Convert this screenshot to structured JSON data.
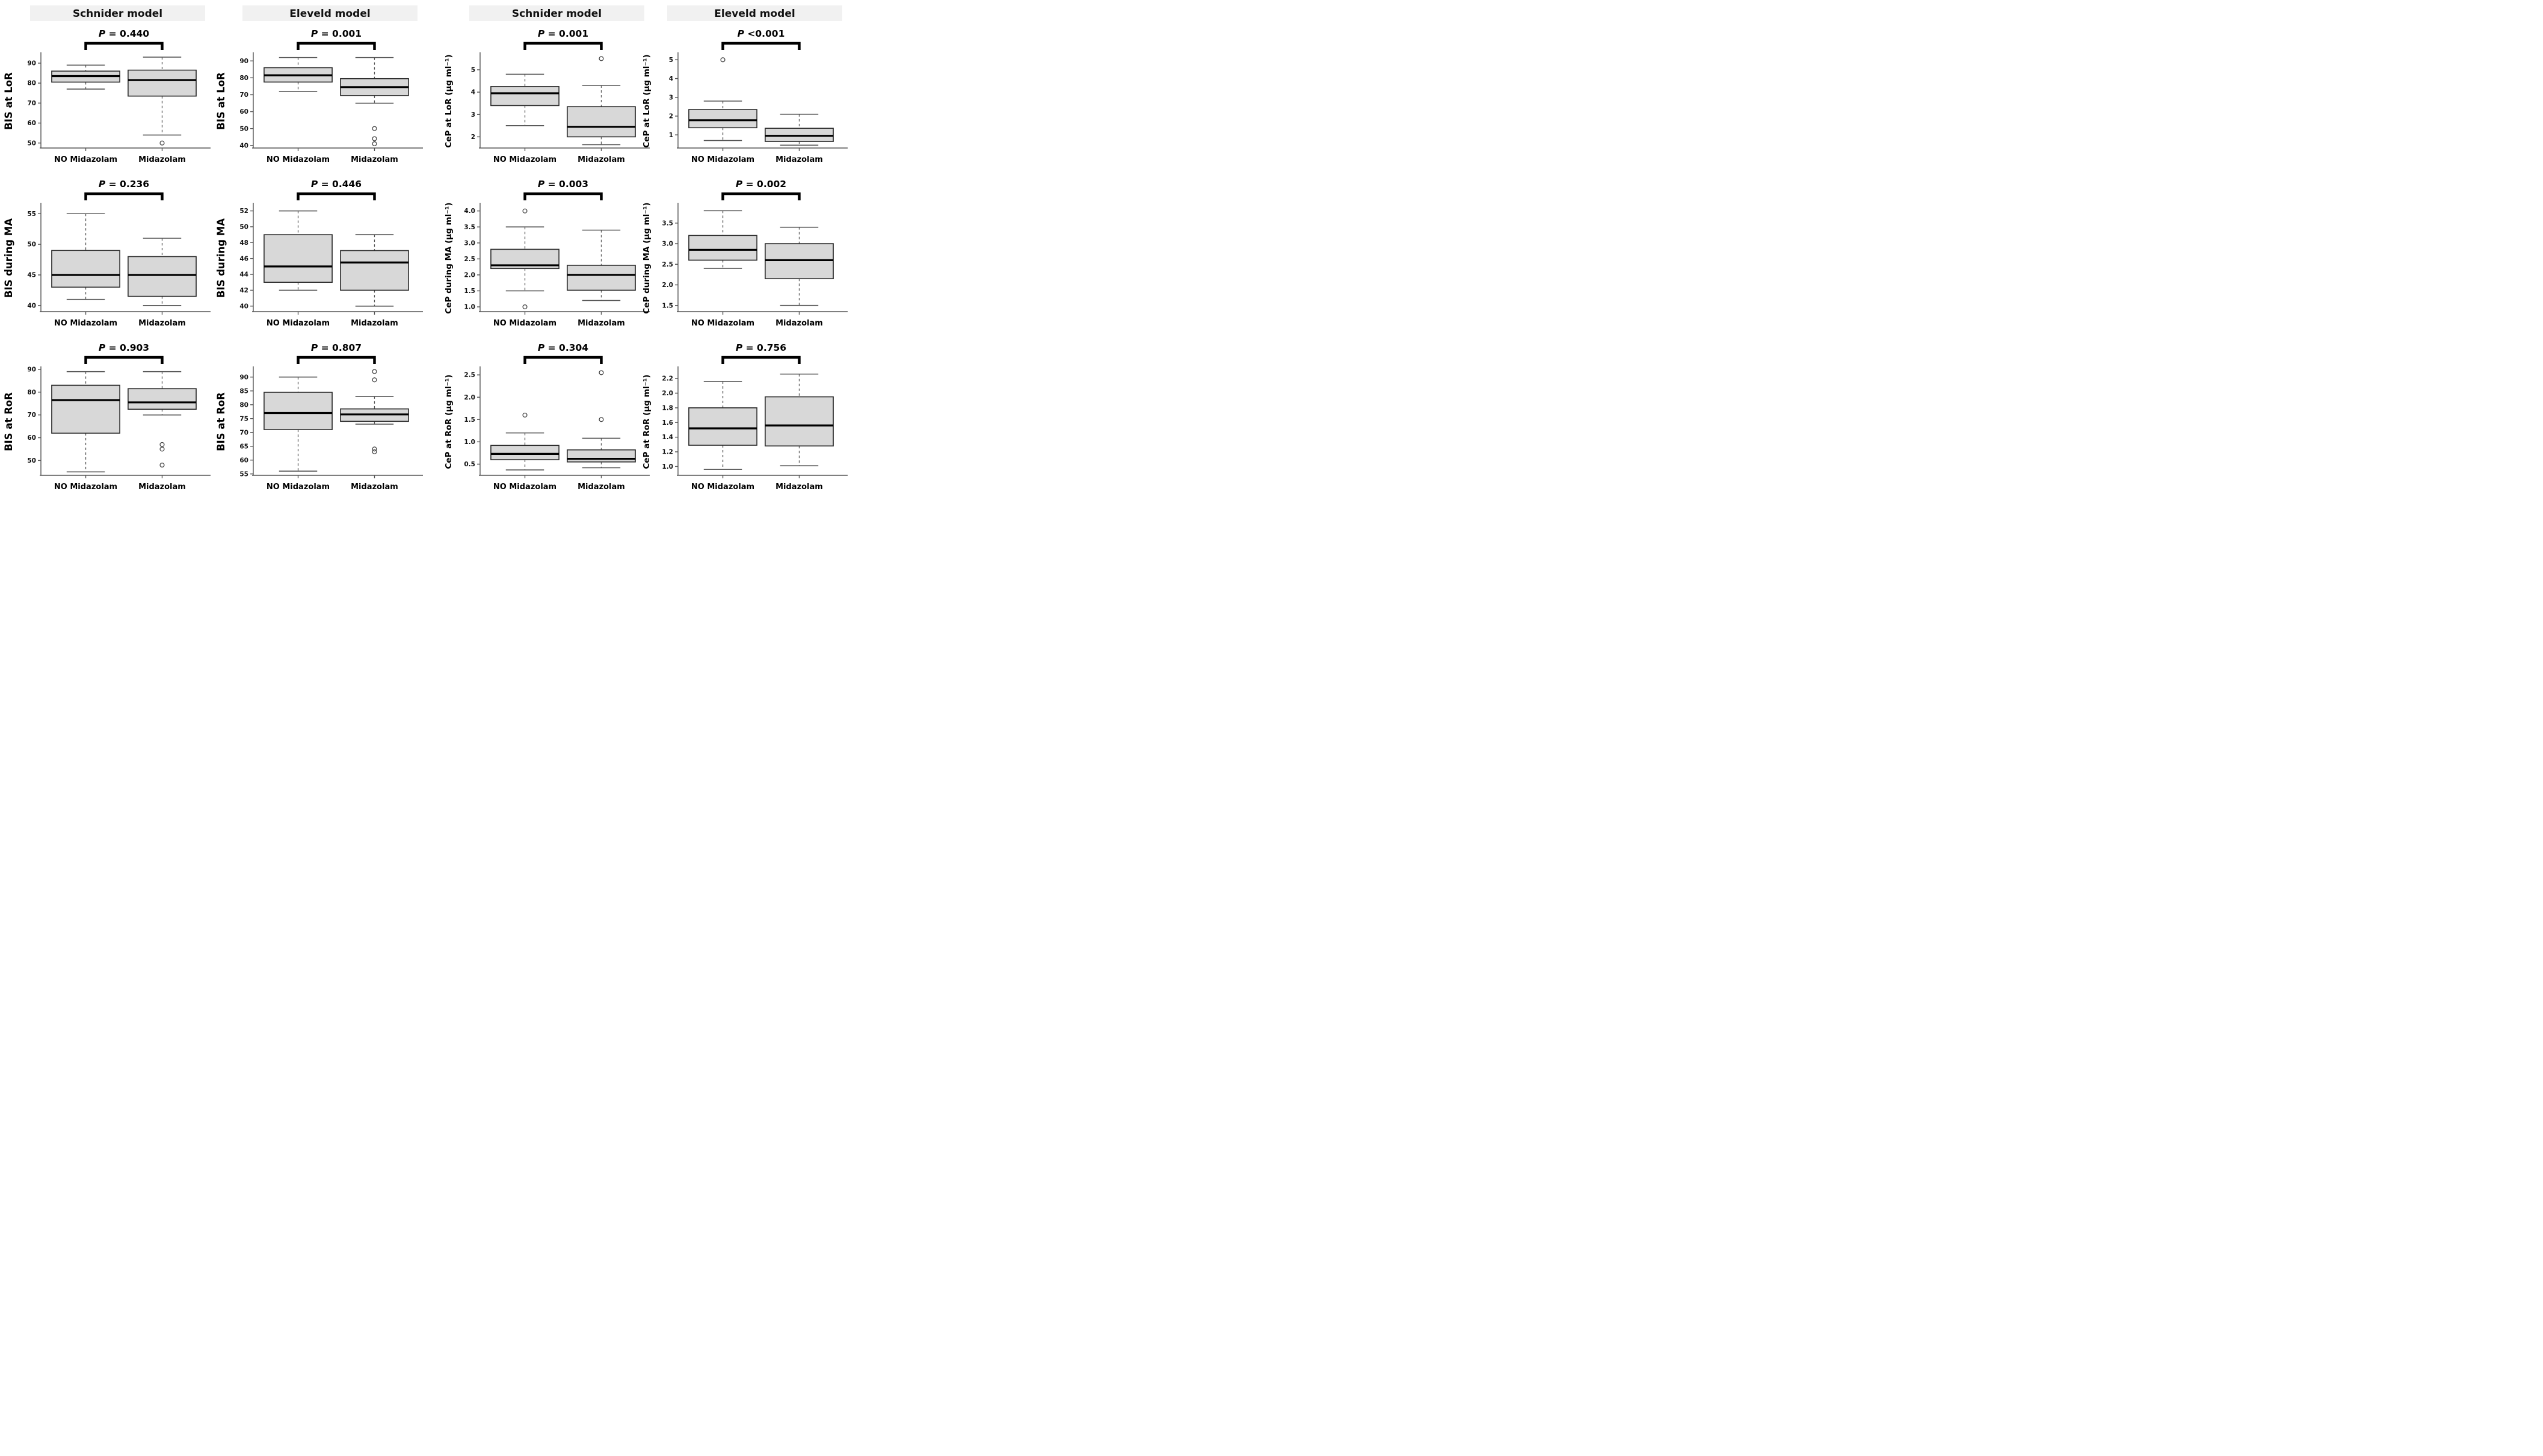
{
  "figure": {
    "column_headers": [
      "Schnider model",
      "Eleveld model",
      "Schnider model",
      "Eleveld model"
    ],
    "group_labels": [
      "NO Midazolam",
      "Midazolam"
    ],
    "header_band_color": "#f1f1f1",
    "box_fill_color": "#d8d8d8",
    "box_stroke_color": "#2b2b2b",
    "median_color": "#000000",
    "whisker_color": "#555555",
    "bracket_color": "#000000"
  },
  "chart_data": [
    {
      "id": "schnider-bis-lor",
      "type": "boxplot",
      "row": 1,
      "col": 1,
      "column_header": "Schnider model",
      "p_label": "P = 0.440",
      "ylabel": "BIS at LoR",
      "ylim": [
        47.5,
        94.5
      ],
      "yticks": [
        50,
        60,
        70,
        80,
        90
      ],
      "ytick_labels": [
        "50",
        "60",
        "70",
        "80",
        "90"
      ],
      "categories": [
        "NO Midazolam",
        "Midazolam"
      ],
      "boxes": [
        {
          "group": "NO Midazolam",
          "whisker_low": 77,
          "q1": 80.5,
          "median": 83.5,
          "q3": 86,
          "whisker_high": 89,
          "outliers": []
        },
        {
          "group": "Midazolam",
          "whisker_low": 54,
          "q1": 73.5,
          "median": 81.5,
          "q3": 86.5,
          "whisker_high": 93,
          "outliers": [
            50
          ]
        }
      ]
    },
    {
      "id": "eleveld-bis-lor",
      "type": "boxplot",
      "row": 1,
      "col": 2,
      "column_header": "Eleveld model",
      "p_label": "P = 0.001",
      "ylabel": "BIS at LoR",
      "ylim": [
        38.5,
        94
      ],
      "yticks": [
        40,
        50,
        60,
        70,
        80,
        90
      ],
      "ytick_labels": [
        "40",
        "50",
        "60",
        "70",
        "80",
        "90"
      ],
      "categories": [
        "NO Midazolam",
        "Midazolam"
      ],
      "boxes": [
        {
          "group": "NO Midazolam",
          "whisker_low": 72,
          "q1": 77.5,
          "median": 81.5,
          "q3": 86,
          "whisker_high": 92,
          "outliers": []
        },
        {
          "group": "Midazolam",
          "whisker_low": 65,
          "q1": 69.5,
          "median": 74.5,
          "q3": 79.5,
          "whisker_high": 92,
          "outliers": [
            50,
            44,
            41
          ]
        }
      ]
    },
    {
      "id": "schnider-cep-lor",
      "type": "boxplot",
      "row": 1,
      "col": 3,
      "column_header": "Schnider model",
      "p_label": "P = 0.001",
      "ylabel": "CeP at LoR (µg ml⁻¹)",
      "ylim": [
        1.5,
        5.7
      ],
      "yticks": [
        2,
        3,
        4,
        5
      ],
      "ytick_labels": [
        "2",
        "3",
        "4",
        "5"
      ],
      "categories": [
        "NO Midazolam",
        "Midazolam"
      ],
      "boxes": [
        {
          "group": "NO Midazolam",
          "whisker_low": 2.5,
          "q1": 3.4,
          "median": 3.95,
          "q3": 4.25,
          "whisker_high": 4.8,
          "outliers": []
        },
        {
          "group": "Midazolam",
          "whisker_low": 1.65,
          "q1": 2.0,
          "median": 2.45,
          "q3": 3.35,
          "whisker_high": 4.3,
          "outliers": [
            5.5
          ]
        }
      ]
    },
    {
      "id": "eleveld-cep-lor",
      "type": "boxplot",
      "row": 1,
      "col": 4,
      "column_header": "Eleveld model",
      "p_label": "P <0.001",
      "ylabel": "CeP at LoR (µg ml⁻¹)",
      "ylim": [
        0.3,
        5.3
      ],
      "yticks": [
        1,
        2,
        3,
        4,
        5
      ],
      "ytick_labels": [
        "1",
        "2",
        "3",
        "4",
        "5"
      ],
      "categories": [
        "NO Midazolam",
        "Midazolam"
      ],
      "boxes": [
        {
          "group": "NO Midazolam",
          "whisker_low": 0.7,
          "q1": 1.38,
          "median": 1.78,
          "q3": 2.35,
          "whisker_high": 2.8,
          "outliers": [
            5.0
          ]
        },
        {
          "group": "Midazolam",
          "whisker_low": 0.45,
          "q1": 0.65,
          "median": 0.95,
          "q3": 1.35,
          "whisker_high": 2.1,
          "outliers": []
        }
      ]
    },
    {
      "id": "schnider-bis-ma",
      "type": "boxplot",
      "row": 2,
      "col": 1,
      "column_header": null,
      "p_label": "P = 0.236",
      "ylabel": "BIS during MA",
      "ylim": [
        39,
        56.5
      ],
      "yticks": [
        40,
        45,
        50,
        55
      ],
      "ytick_labels": [
        "40",
        "45",
        "50",
        "55"
      ],
      "categories": [
        "NO Midazolam",
        "Midazolam"
      ],
      "boxes": [
        {
          "group": "NO Midazolam",
          "whisker_low": 41,
          "q1": 43,
          "median": 45,
          "q3": 49,
          "whisker_high": 55,
          "outliers": []
        },
        {
          "group": "Midazolam",
          "whisker_low": 40,
          "q1": 41.5,
          "median": 45,
          "q3": 48,
          "whisker_high": 51,
          "outliers": []
        }
      ]
    },
    {
      "id": "eleveld-bis-ma",
      "type": "boxplot",
      "row": 2,
      "col": 2,
      "column_header": null,
      "p_label": "P = 0.446",
      "ylabel": "BIS during MA",
      "ylim": [
        39.3,
        52.8
      ],
      "yticks": [
        40,
        42,
        44,
        46,
        48,
        50,
        52
      ],
      "ytick_labels": [
        "40",
        "42",
        "44",
        "46",
        "48",
        "50",
        "52"
      ],
      "categories": [
        "NO Midazolam",
        "Midazolam"
      ],
      "boxes": [
        {
          "group": "NO Midazolam",
          "whisker_low": 42,
          "q1": 43,
          "median": 45,
          "q3": 49,
          "whisker_high": 52,
          "outliers": []
        },
        {
          "group": "Midazolam",
          "whisker_low": 40,
          "q1": 42,
          "median": 45.5,
          "q3": 47,
          "whisker_high": 49,
          "outliers": []
        }
      ]
    },
    {
      "id": "schnider-cep-ma",
      "type": "boxplot",
      "row": 2,
      "col": 3,
      "column_header": null,
      "p_label": "P = 0.003",
      "ylabel": "CeP during MA (µg ml⁻¹)",
      "ylim": [
        0.85,
        4.2
      ],
      "yticks": [
        1.0,
        1.5,
        2.0,
        2.5,
        3.0,
        3.5,
        4.0
      ],
      "ytick_labels": [
        "1.0",
        "1.5",
        "2.0",
        "2.5",
        "3.0",
        "3.5",
        "4.0"
      ],
      "categories": [
        "NO Midazolam",
        "Midazolam"
      ],
      "boxes": [
        {
          "group": "NO Midazolam",
          "whisker_low": 1.5,
          "q1": 2.2,
          "median": 2.3,
          "q3": 2.8,
          "whisker_high": 3.5,
          "outliers": [
            4.0,
            1.0
          ]
        },
        {
          "group": "Midazolam",
          "whisker_low": 1.2,
          "q1": 1.52,
          "median": 2.0,
          "q3": 2.3,
          "whisker_high": 3.4,
          "outliers": []
        }
      ]
    },
    {
      "id": "eleveld-cep-ma",
      "type": "boxplot",
      "row": 2,
      "col": 4,
      "column_header": null,
      "p_label": "P = 0.002",
      "ylabel": "CeP during MA (µg ml⁻¹)",
      "ylim": [
        1.35,
        3.95
      ],
      "yticks": [
        1.5,
        2.0,
        2.5,
        3.0,
        3.5
      ],
      "ytick_labels": [
        "1.5",
        "2.0",
        "2.5",
        "3.0",
        "3.5"
      ],
      "categories": [
        "NO Midazolam",
        "Midazolam"
      ],
      "boxes": [
        {
          "group": "NO Midazolam",
          "whisker_low": 2.4,
          "q1": 2.6,
          "median": 2.85,
          "q3": 3.2,
          "whisker_high": 3.8,
          "outliers": []
        },
        {
          "group": "Midazolam",
          "whisker_low": 1.5,
          "q1": 2.15,
          "median": 2.6,
          "q3": 3.0,
          "whisker_high": 3.4,
          "outliers": []
        }
      ]
    },
    {
      "id": "schnider-bis-ror",
      "type": "boxplot",
      "row": 3,
      "col": 1,
      "column_header": null,
      "p_label": "P = 0.903",
      "ylabel": "BIS at RoR",
      "ylim": [
        43.5,
        90.5
      ],
      "yticks": [
        50,
        60,
        70,
        80,
        90
      ],
      "ytick_labels": [
        "50",
        "60",
        "70",
        "80",
        "90"
      ],
      "categories": [
        "NO Midazolam",
        "Midazolam"
      ],
      "boxes": [
        {
          "group": "NO Midazolam",
          "whisker_low": 45,
          "q1": 62,
          "median": 76.5,
          "q3": 83,
          "whisker_high": 89,
          "outliers": []
        },
        {
          "group": "Midazolam",
          "whisker_low": 70,
          "q1": 72.5,
          "median": 75.5,
          "q3": 81.5,
          "whisker_high": 89,
          "outliers": [
            57,
            55,
            48
          ]
        }
      ]
    },
    {
      "id": "eleveld-bis-ror",
      "type": "boxplot",
      "row": 3,
      "col": 2,
      "column_header": null,
      "p_label": "P = 0.807",
      "ylabel": "BIS at RoR",
      "ylim": [
        54.5,
        93.2
      ],
      "yticks": [
        55,
        60,
        65,
        70,
        75,
        80,
        85,
        90
      ],
      "ytick_labels": [
        "55",
        "60",
        "65",
        "70",
        "75",
        "80",
        "85",
        "90"
      ],
      "categories": [
        "NO Midazolam",
        "Midazolam"
      ],
      "boxes": [
        {
          "group": "NO Midazolam",
          "whisker_low": 56,
          "q1": 71,
          "median": 77,
          "q3": 84.5,
          "whisker_high": 90,
          "outliers": []
        },
        {
          "group": "Midazolam",
          "whisker_low": 73,
          "q1": 74,
          "median": 76.5,
          "q3": 78.5,
          "whisker_high": 83,
          "outliers": [
            92,
            89,
            64,
            63
          ]
        }
      ]
    },
    {
      "id": "schnider-cep-ror",
      "type": "boxplot",
      "row": 3,
      "col": 3,
      "column_header": null,
      "p_label": "P = 0.304",
      "ylabel": "CeP at RoR (µg ml⁻¹)",
      "ylim": [
        0.25,
        2.65
      ],
      "yticks": [
        0.5,
        1.0,
        1.5,
        2.0,
        2.5
      ],
      "ytick_labels": [
        "0.5",
        "1.0",
        "1.5",
        "2.0",
        "2.5"
      ],
      "categories": [
        "NO Midazolam",
        "Midazolam"
      ],
      "boxes": [
        {
          "group": "NO Midazolam",
          "whisker_low": 0.37,
          "q1": 0.6,
          "median": 0.73,
          "q3": 0.92,
          "whisker_high": 1.2,
          "outliers": [
            1.6
          ]
        },
        {
          "group": "Midazolam",
          "whisker_low": 0.42,
          "q1": 0.55,
          "median": 0.62,
          "q3": 0.82,
          "whisker_high": 1.08,
          "outliers": [
            2.55,
            1.5
          ]
        }
      ]
    },
    {
      "id": "eleveld-cep-ror",
      "type": "boxplot",
      "row": 3,
      "col": 4,
      "column_header": null,
      "p_label": "P = 0.756",
      "ylabel": "CeP at RoR (µg ml⁻¹)",
      "ylim": [
        0.88,
        2.34
      ],
      "yticks": [
        1.0,
        1.2,
        1.4,
        1.6,
        1.8,
        2.0,
        2.2
      ],
      "ytick_labels": [
        "1.0",
        "1.2",
        "1.4",
        "1.6",
        "1.8",
        "2.0",
        "2.2"
      ],
      "categories": [
        "NO Midazolam",
        "Midazolam"
      ],
      "boxes": [
        {
          "group": "NO Midazolam",
          "whisker_low": 0.96,
          "q1": 1.29,
          "median": 1.52,
          "q3": 1.8,
          "whisker_high": 2.16,
          "outliers": []
        },
        {
          "group": "Midazolam",
          "whisker_low": 1.01,
          "q1": 1.28,
          "median": 1.56,
          "q3": 1.95,
          "whisker_high": 2.26,
          "outliers": []
        }
      ]
    }
  ]
}
